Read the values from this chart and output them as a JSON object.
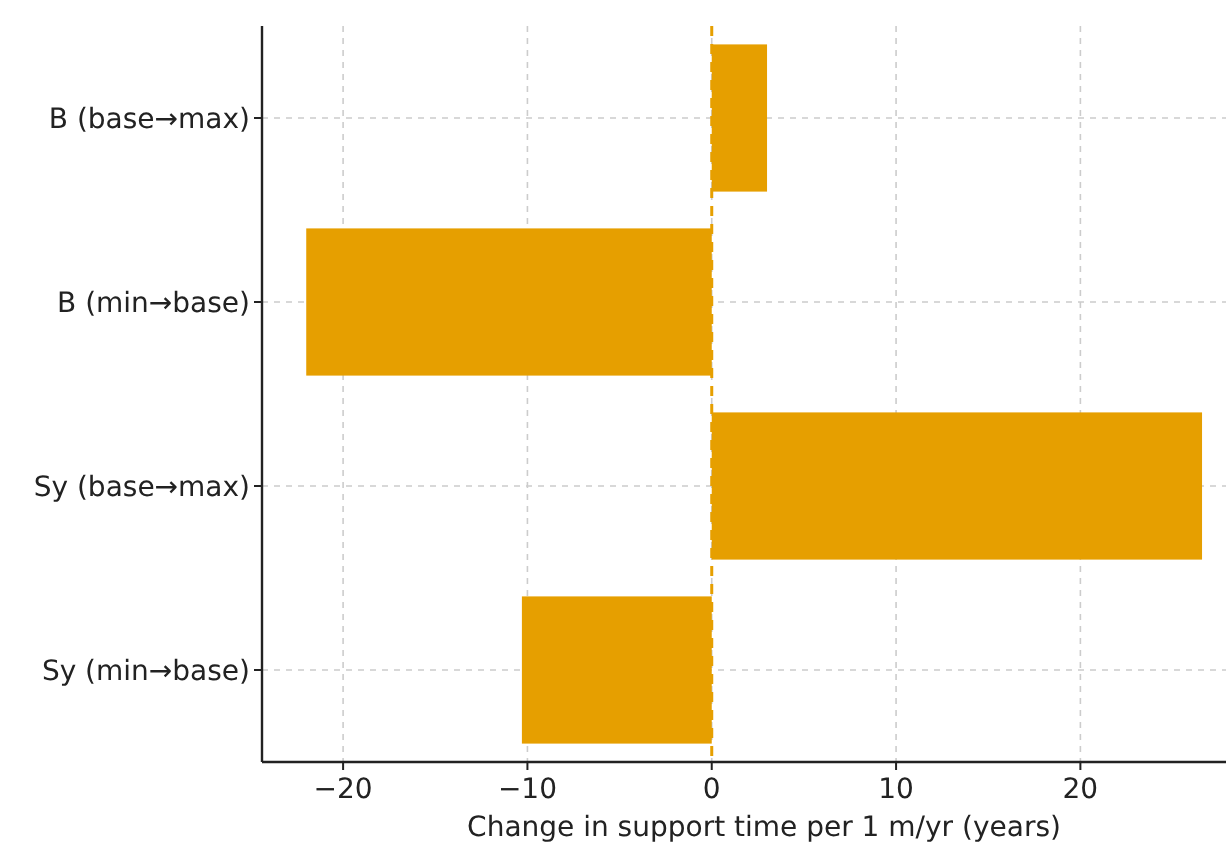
{
  "chart_data": {
    "type": "bar",
    "orientation": "horizontal",
    "xlabel": "Change in support time per 1 m/yr (years)",
    "categories": [
      "B (base→max)",
      "B (min→base)",
      "Sy (base→max)",
      "Sy (min→base)"
    ],
    "values": [
      3.0,
      -22.0,
      26.6,
      -10.3
    ],
    "color": "#e69f00",
    "xlim": [
      -24.4,
      27.9
    ],
    "xticks": [
      {
        "value": -20,
        "label": "−20"
      },
      {
        "value": -10,
        "label": "−10"
      },
      0,
      10,
      20
    ],
    "grid": true,
    "ref_lines": [
      {
        "axis": "x",
        "value": 0,
        "color": "#e69f00",
        "line_style": "dashed"
      }
    ]
  }
}
